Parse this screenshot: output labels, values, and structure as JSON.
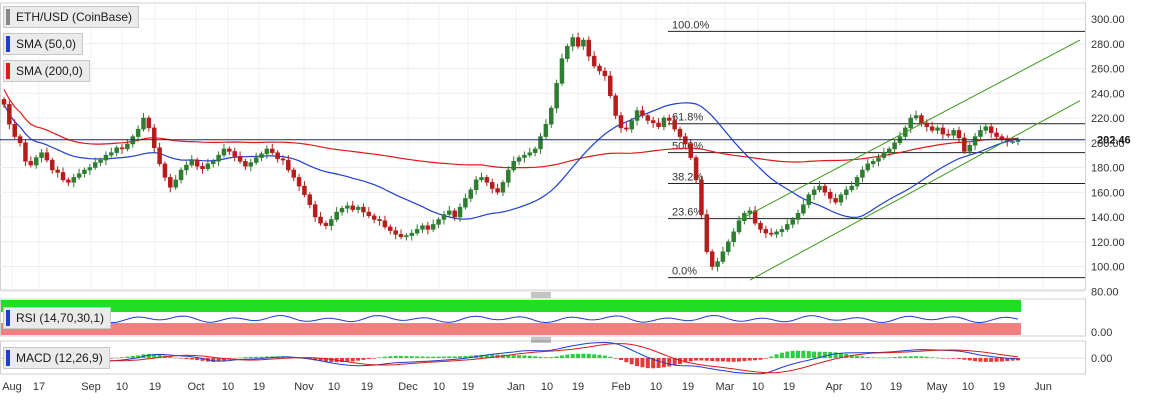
{
  "chart_data": {
    "type": "candlestick",
    "symbol": "ETH/USD (CoinBase)",
    "current_price": "202.46",
    "colors": {
      "up": "#2e7d32",
      "down": "#b71c1c",
      "sma50": "#1f3fcf",
      "sma200": "#e01919",
      "channel": "#3a9a1a",
      "rsi_upper_band": "#22dd22",
      "rsi_lower_band": "#f08080",
      "rsi_line": "#1f3fcf",
      "macd_line": "#1f3fcf",
      "signal_line": "#d81b1b"
    },
    "x_ticks": [
      "Aug",
      "17",
      "Sep",
      "10",
      "19",
      "Oct",
      "10",
      "19",
      "Nov",
      "10",
      "19",
      "Dec",
      "10",
      "19",
      "Jan",
      "10",
      "19",
      "Feb",
      "10",
      "19",
      "Mar",
      "10",
      "19",
      "Apr",
      "10",
      "19",
      "May",
      "10",
      "19",
      "Jun"
    ],
    "y_ticks": [
      "300.00",
      "280.00",
      "260.00",
      "240.00",
      "220.00",
      "200.00",
      "180.00",
      "160.00",
      "140.00",
      "120.00",
      "100.00",
      "80.00"
    ],
    "ylim": [
      75,
      305
    ],
    "candles_close": [
      231,
      215,
      205,
      200,
      185,
      182,
      188,
      192,
      186,
      178,
      176,
      170,
      168,
      172,
      175,
      178,
      180,
      184,
      186,
      190,
      192,
      196,
      195,
      199,
      205,
      211,
      220,
      212,
      196,
      183,
      172,
      164,
      170,
      178,
      182,
      186,
      181,
      179,
      183,
      185,
      190,
      195,
      193,
      189,
      185,
      181,
      184,
      188,
      191,
      195,
      192,
      187,
      186,
      178,
      172,
      165,
      158,
      150,
      140,
      135,
      133,
      138,
      144,
      147,
      149,
      146,
      148,
      144,
      141,
      138,
      137,
      132,
      129,
      126,
      124,
      125,
      127,
      130,
      133,
      130,
      134,
      138,
      142,
      145,
      140,
      148,
      155,
      162,
      170,
      172,
      168,
      163,
      160,
      168,
      178,
      185,
      188,
      190,
      192,
      195,
      205,
      215,
      228,
      248,
      268,
      278,
      285,
      278,
      283,
      270,
      262,
      258,
      254,
      238,
      222,
      212,
      211,
      218,
      226,
      222,
      218,
      216,
      213,
      220,
      218,
      211,
      205,
      199,
      188,
      170,
      142,
      112,
      100,
      104,
      112,
      120,
      128,
      137,
      143,
      145,
      135,
      130,
      127,
      126,
      128,
      130,
      134,
      138,
      143,
      150,
      158,
      162,
      165,
      160,
      155,
      152,
      158,
      162,
      165,
      172,
      178,
      183,
      185,
      188,
      192,
      195,
      200,
      205,
      212,
      220,
      222,
      216,
      213,
      210,
      212,
      207,
      206,
      210,
      204,
      193,
      198,
      205,
      210,
      213,
      208,
      205,
      203,
      201,
      201,
      202.46
    ],
    "fibonacci_levels": [
      {
        "label": "100.0%",
        "value": 290
      },
      {
        "label": "61.8%",
        "value": 215.4
      },
      {
        "label": "50.0%",
        "value": 192
      },
      {
        "label": "38.2%",
        "value": 167.1
      },
      {
        "label": "23.6%",
        "value": 138.7
      },
      {
        "label": "0.0%",
        "value": 91
      }
    ],
    "channel_lines": [
      {
        "x0": 740,
        "v0": 138,
        "x1": 1080,
        "v1": 283
      },
      {
        "x0": 750,
        "v0": 89,
        "x1": 1080,
        "v1": 234
      }
    ],
    "indicators": {
      "sma50_label": "SMA (50,0)",
      "sma200_label": "SMA (200,0)",
      "rsi_label": "RSI (14,70,30,1)",
      "rsi_ticks": [
        "0.00"
      ],
      "macd_label": "MACD (12,26,9)",
      "macd_ticks": [
        "0.00"
      ]
    }
  }
}
